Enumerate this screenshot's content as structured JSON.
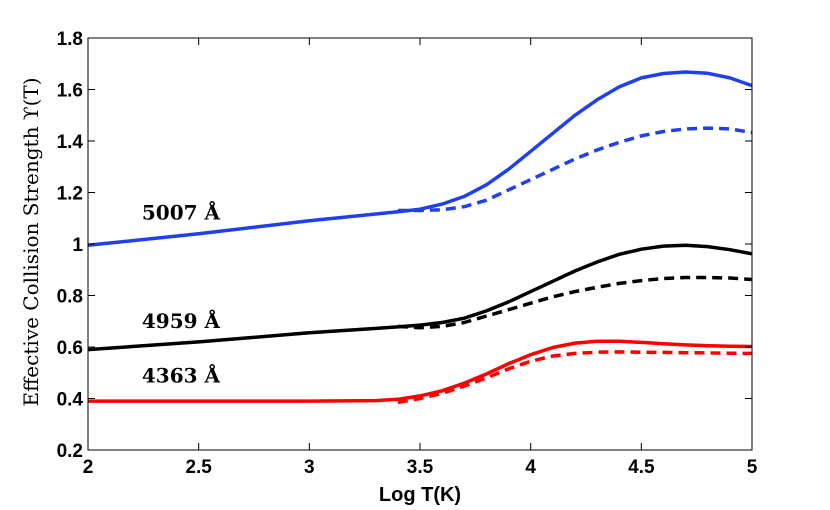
{
  "chart_data": {
    "type": "line",
    "title": "",
    "xlabel": "Log T(K)",
    "ylabel": "Effective Collision Strength ϒ(T)",
    "xlim": [
      2,
      5
    ],
    "ylim": [
      0.2,
      1.8
    ],
    "xticks": [
      "2",
      "2.5",
      "3",
      "3.5",
      "4",
      "4.5",
      "5"
    ],
    "yticks": [
      "0.2",
      "0.4",
      "0.6",
      "0.8",
      "1",
      "1.2",
      "1.4",
      "1.6",
      "1.8"
    ],
    "grid": false,
    "annotations": [
      {
        "text": "5007 Å",
        "x": 2.42,
        "y": 1.095
      },
      {
        "text": "4959 Å",
        "x": 2.42,
        "y": 0.673
      },
      {
        "text": "4363 Å",
        "x": 2.42,
        "y": 0.463
      }
    ],
    "series": [
      {
        "name": "5007 Å solid",
        "color": "#1f3ff0",
        "dash": "solid",
        "x": [
          2.0,
          2.5,
          3.0,
          3.4,
          3.5,
          3.6,
          3.7,
          3.8,
          3.9,
          4.0,
          4.1,
          4.2,
          4.3,
          4.4,
          4.5,
          4.6,
          4.7,
          4.8,
          4.9,
          5.0
        ],
        "y": [
          0.995,
          1.04,
          1.09,
          1.125,
          1.135,
          1.155,
          1.185,
          1.23,
          1.29,
          1.36,
          1.43,
          1.5,
          1.56,
          1.61,
          1.645,
          1.662,
          1.668,
          1.663,
          1.645,
          1.615
        ]
      },
      {
        "name": "5007 Å dashed",
        "color": "#1f3ff0",
        "dash": "dashed",
        "x": [
          3.4,
          3.5,
          3.6,
          3.7,
          3.8,
          3.9,
          4.0,
          4.1,
          4.2,
          4.3,
          4.4,
          4.5,
          4.6,
          4.7,
          4.8,
          4.9,
          5.0
        ],
        "y": [
          1.13,
          1.13,
          1.133,
          1.145,
          1.17,
          1.21,
          1.25,
          1.29,
          1.33,
          1.365,
          1.395,
          1.42,
          1.437,
          1.447,
          1.45,
          1.447,
          1.433
        ]
      },
      {
        "name": "4959 Å solid",
        "color": "#000000",
        "dash": "solid",
        "x": [
          2.0,
          2.5,
          3.0,
          3.4,
          3.5,
          3.6,
          3.7,
          3.8,
          3.9,
          4.0,
          4.1,
          4.2,
          4.3,
          4.4,
          4.5,
          4.6,
          4.7,
          4.8,
          4.9,
          5.0
        ],
        "y": [
          0.59,
          0.62,
          0.655,
          0.678,
          0.685,
          0.695,
          0.712,
          0.74,
          0.775,
          0.815,
          0.855,
          0.895,
          0.93,
          0.96,
          0.98,
          0.992,
          0.995,
          0.99,
          0.978,
          0.962
        ]
      },
      {
        "name": "4959 Å dashed",
        "color": "#000000",
        "dash": "dashed",
        "x": [
          3.4,
          3.5,
          3.6,
          3.7,
          3.8,
          3.9,
          4.0,
          4.1,
          4.2,
          4.3,
          4.4,
          4.5,
          4.6,
          4.7,
          4.8,
          4.9,
          5.0
        ],
        "y": [
          0.68,
          0.675,
          0.68,
          0.695,
          0.72,
          0.745,
          0.77,
          0.795,
          0.815,
          0.832,
          0.847,
          0.858,
          0.866,
          0.87,
          0.87,
          0.868,
          0.862
        ]
      },
      {
        "name": "4363 Å solid",
        "color": "#ff0000",
        "dash": "solid",
        "x": [
          2.0,
          2.5,
          3.0,
          3.3,
          3.4,
          3.5,
          3.6,
          3.7,
          3.8,
          3.9,
          4.0,
          4.1,
          4.2,
          4.3,
          4.4,
          4.5,
          4.6,
          4.7,
          4.8,
          4.9,
          5.0
        ],
        "y": [
          0.39,
          0.39,
          0.39,
          0.392,
          0.397,
          0.41,
          0.43,
          0.46,
          0.495,
          0.535,
          0.57,
          0.598,
          0.615,
          0.622,
          0.622,
          0.618,
          0.613,
          0.608,
          0.605,
          0.603,
          0.602
        ]
      },
      {
        "name": "4363 Å dashed",
        "color": "#ff0000",
        "dash": "dashed",
        "x": [
          3.4,
          3.5,
          3.6,
          3.7,
          3.8,
          3.9,
          4.0,
          4.1,
          4.2,
          4.3,
          4.4,
          4.5,
          4.6,
          4.7,
          4.8,
          4.9,
          5.0
        ],
        "y": [
          0.385,
          0.4,
          0.42,
          0.448,
          0.48,
          0.515,
          0.545,
          0.565,
          0.575,
          0.58,
          0.581,
          0.58,
          0.579,
          0.578,
          0.577,
          0.576,
          0.575
        ]
      }
    ]
  }
}
